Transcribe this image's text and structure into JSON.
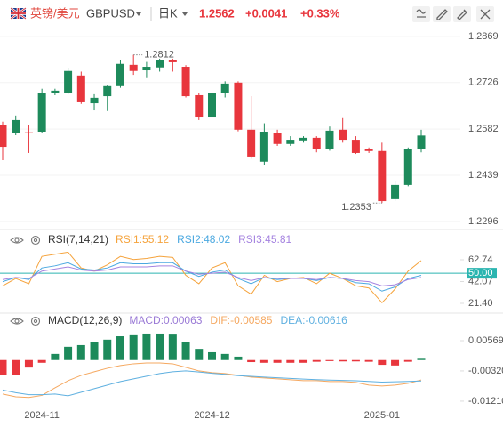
{
  "header": {
    "name": "英镑/美元",
    "symbol": "GBPUSD",
    "period": "日K",
    "price": "1.2562",
    "change": "+0.0041",
    "change_pct": "+0.33%"
  },
  "chart_data": [
    {
      "type": "candlestick",
      "categories": [
        null,
        null,
        null,
        "2024-11",
        null,
        null,
        null,
        null,
        null,
        null,
        null,
        null,
        null,
        null,
        null,
        null,
        "2024-12",
        null,
        null,
        null,
        null,
        null,
        null,
        null,
        null,
        null,
        null,
        null,
        null,
        "2025-01",
        null,
        null,
        null
      ],
      "open": [
        1.2596,
        1.2569,
        1.2572,
        1.2574,
        1.2693,
        1.2695,
        1.2748,
        1.2662,
        1.2684,
        1.2715,
        1.2781,
        1.2764,
        1.2773,
        1.2795,
        1.2775,
        1.2687,
        1.2618,
        1.2693,
        1.2726,
        1.258,
        1.2481,
        1.2569,
        1.2536,
        1.2547,
        1.2555,
        1.2519,
        1.258,
        1.2549,
        1.2519,
        1.2514,
        1.2365,
        1.2409,
        1.2519
      ],
      "high": [
        1.2605,
        1.2624,
        1.2596,
        1.2707,
        1.2707,
        1.277,
        1.276,
        1.269,
        1.272,
        1.2795,
        1.2812,
        1.279,
        1.28,
        1.28,
        1.278,
        1.2695,
        1.27,
        1.273,
        1.273,
        1.2684,
        1.26,
        1.258,
        1.256,
        1.256,
        1.256,
        1.259,
        1.2616,
        1.256,
        1.2525,
        1.254,
        1.242,
        1.2525,
        1.258
      ],
      "low": [
        1.2486,
        1.2563,
        1.2508,
        1.2569,
        1.2687,
        1.269,
        1.266,
        1.264,
        1.2638,
        1.271,
        1.275,
        1.274,
        1.276,
        1.276,
        1.268,
        1.261,
        1.261,
        1.268,
        1.2575,
        1.249,
        1.247,
        1.253,
        1.253,
        1.254,
        1.251,
        1.2515,
        1.254,
        1.2505,
        1.2508,
        1.2353,
        1.236,
        1.2405,
        1.251
      ],
      "close": [
        1.2527,
        1.261,
        1.2569,
        1.2695,
        1.2701,
        1.2762,
        1.2665,
        1.2679,
        1.2715,
        1.2784,
        1.2762,
        1.2775,
        1.2795,
        1.2789,
        1.2684,
        1.2618,
        1.2693,
        1.2723,
        1.258,
        1.2497,
        1.2574,
        1.2536,
        1.2549,
        1.2555,
        1.2519,
        1.2577,
        1.2549,
        1.2508,
        1.2514,
        1.2359,
        1.2409,
        1.2519,
        1.2562
      ],
      "up_color": "#1d8a5b",
      "down_color": "#e8363d",
      "max_label": "1.2812",
      "min_label": "1.2353",
      "ylim": [
        1.2271,
        1.2899
      ],
      "yticks": [
        1.2869,
        1.2726,
        1.2582,
        1.2439,
        1.2296
      ],
      "grid": true
    },
    {
      "type": "line",
      "title": "RSI(7,14,21)",
      "series": [
        {
          "name": "RSI1:55.12",
          "color": "#f5a33c",
          "values": [
            38,
            45,
            40,
            66,
            68,
            70,
            55,
            52,
            58,
            66,
            63,
            64,
            66,
            65,
            48,
            40,
            55,
            60,
            38,
            30,
            48,
            42,
            45,
            46,
            40,
            50,
            45,
            38,
            36,
            22,
            35,
            52,
            62
          ]
        },
        {
          "name": "RSI2:48.02",
          "color": "#4aa8e0",
          "values": [
            42,
            46,
            44,
            55,
            57,
            60,
            54,
            53,
            55,
            60,
            59,
            59,
            60,
            60,
            52,
            47,
            51,
            53,
            45,
            40,
            46,
            44,
            45,
            45,
            43,
            46,
            45,
            41,
            40,
            33,
            37,
            45,
            48
          ]
        },
        {
          "name": "RSI3:45.81",
          "color": "#a583e0",
          "values": [
            44,
            46,
            45,
            52,
            54,
            56,
            53,
            52,
            53,
            56,
            56,
            56,
            57,
            57,
            52,
            49,
            50,
            51,
            46,
            43,
            46,
            45,
            45,
            45,
            44,
            46,
            45,
            43,
            42,
            38,
            39,
            44,
            46
          ]
        }
      ],
      "reference_line": 50,
      "reference_color": "#2bb5b0",
      "ylim": [
        13.8,
        71.2
      ],
      "yticks": [
        62.74,
        {
          "value": 50,
          "label": "50.00"
        },
        42.07,
        {
          "value": 21.4,
          "label": "21.40"
        }
      ]
    },
    {
      "type": "macd",
      "title": "MACD(12,26,9)",
      "series": [
        {
          "name": "MACD:0.00063",
          "color": "#9a7ad6",
          "values": [
            -0.0045,
            -0.0045,
            -0.0022,
            -0.0008,
            0.0018,
            0.0039,
            0.0044,
            0.0052,
            0.006,
            0.007,
            0.0073,
            0.0078,
            0.0078,
            0.0075,
            0.0054,
            0.0033,
            0.0023,
            0.0018,
            0.001,
            -0.0006,
            -0.0008,
            -0.0008,
            -0.0008,
            -0.0008,
            -0.0005,
            -0.0003,
            -0.0004,
            -0.0004,
            -0.0005,
            -0.0014,
            -0.0016,
            -0.0005,
            0.00063
          ]
        },
        {
          "name": "DIF:-0.00585",
          "color": "#f5a860",
          "values": [
            -0.01,
            -0.0108,
            -0.011,
            -0.0104,
            -0.00816,
            -0.00607,
            -0.0045,
            -0.00345,
            -0.00241,
            -0.00162,
            -0.0011,
            -0.00084,
            -0.00084,
            -0.0011,
            -0.00214,
            -0.00319,
            -0.00371,
            -0.00397,
            -0.0045,
            -0.00502,
            -0.00528,
            -0.00554,
            -0.00581,
            -0.00607,
            -0.00607,
            -0.00633,
            -0.00633,
            -0.00659,
            -0.00737,
            -0.00764,
            -0.00737,
            -0.00685,
            -0.00585
          ]
        },
        {
          "name": "DEA:-0.00616",
          "color": "#5fb0e0",
          "values": [
            -0.0088,
            -0.0096,
            -0.0102,
            -0.0102,
            -0.01,
            -0.01051,
            -0.00947,
            -0.00842,
            -0.00737,
            -0.00633,
            -0.00554,
            -0.00476,
            -0.00397,
            -0.00345,
            -0.00319,
            -0.0035,
            -0.0039,
            -0.0042,
            -0.0046,
            -0.0048,
            -0.005,
            -0.0052,
            -0.0054,
            -0.0056,
            -0.00575,
            -0.0059,
            -0.006,
            -0.0061,
            -0.0063,
            -0.0065,
            -0.0064,
            -0.0063,
            -0.00616
          ]
        }
      ],
      "up_color": "#1d8a5b",
      "down_color": "#e8363d",
      "ylim": [
        -0.015,
        0.0091
      ],
      "yticks": [
        0.00569,
        {
          "value": -0.0032,
          "label": "-0.00320"
        },
        {
          "value": -0.0121,
          "label": "-0.01210"
        }
      ]
    }
  ]
}
